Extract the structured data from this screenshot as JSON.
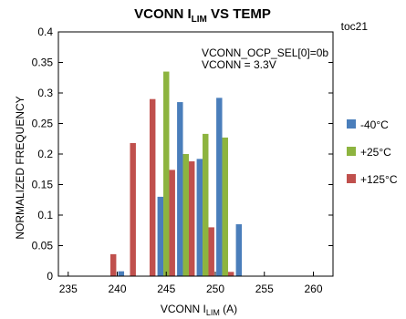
{
  "chart_data": {
    "type": "bar",
    "title": {
      "main": "VCONN I",
      "sub": "LIM",
      "rest": " VS TEMP"
    },
    "figure_id": "toc21",
    "annotations": [
      "VCONN_OCP_SEL[0]=0b",
      "VCONN = 3.3V"
    ],
    "xlabel": {
      "main": "VCONN I",
      "sub": "LIM",
      "rest": " (A)"
    },
    "ylabel": "NORMALIZED FREQUENCY",
    "xlim": [
      234,
      262
    ],
    "ylim": [
      0,
      0.4
    ],
    "x_ticks": [
      235,
      240,
      245,
      250,
      255,
      260
    ],
    "y_ticks": [
      0,
      0.05,
      0.1,
      0.15,
      0.2,
      0.25,
      0.3,
      0.35,
      0.4
    ],
    "y_tick_labels": [
      "0",
      "0.05",
      "0.1",
      "0.15",
      "0.2",
      "0.25",
      "0.3",
      "0.35",
      "0.4"
    ],
    "bin_width": 2,
    "bins": [
      {
        "center": 239,
        "values": [
          0,
          0,
          0.036
        ]
      },
      {
        "center": 241,
        "values": [
          0.008,
          0,
          0.218
        ]
      },
      {
        "center": 243,
        "values": [
          0,
          0,
          0.29
        ]
      },
      {
        "center": 245,
        "values": [
          0.13,
          0.335,
          0.174
        ]
      },
      {
        "center": 247,
        "values": [
          0.285,
          0.2,
          0.188
        ]
      },
      {
        "center": 249,
        "values": [
          0.192,
          0.233,
          0.08
        ]
      },
      {
        "center": 251,
        "values": [
          0.292,
          0.227,
          0.007
        ]
      },
      {
        "center": 253,
        "values": [
          0.085,
          0,
          0
        ]
      }
    ],
    "series": [
      {
        "name": "-40°C",
        "color": "#4a7ebb"
      },
      {
        "name": "+25°C",
        "color": "#8db43f"
      },
      {
        "name": "+125°C",
        "color": "#c0504d"
      }
    ],
    "grid": false,
    "legend_position": "right"
  }
}
